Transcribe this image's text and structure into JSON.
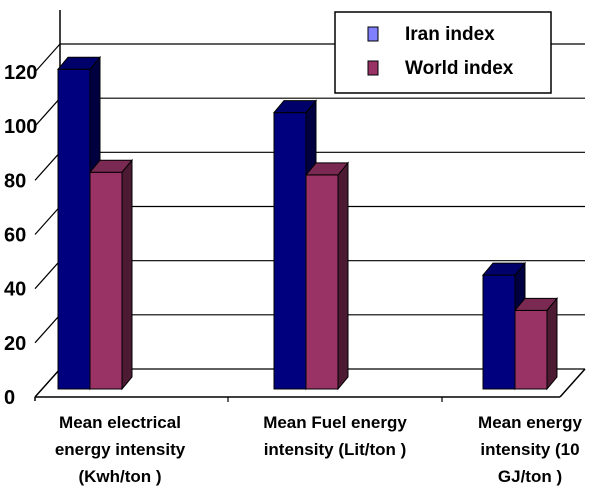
{
  "chart_data": {
    "type": "bar",
    "style": "3d-clustered-column",
    "categories": [
      [
        "Mean electrical",
        "energy intensity",
        "(Kwh/ton )"
      ],
      [
        "Mean Fuel energy",
        "intensity (Lit/ton )"
      ],
      [
        "Mean energy",
        "intensity (10",
        "GJ/ton )"
      ]
    ],
    "series": [
      {
        "name": "Iran index",
        "values": [
          121,
          105,
          45
        ],
        "color": "#00007f",
        "side_color": "#000040",
        "top_color": "#00006a"
      },
      {
        "name": "World index",
        "values": [
          83,
          82,
          32
        ],
        "color": "#993366",
        "side_color": "#4d1a33",
        "top_color": "#7a2952"
      }
    ],
    "yticks": [
      "0",
      "20",
      "40",
      "60",
      "80",
      "100",
      "120"
    ],
    "ylim": [
      0,
      140
    ],
    "grid": true,
    "legend_position": "top-right",
    "legend_icons": [
      "square-icon",
      "square-icon"
    ]
  }
}
